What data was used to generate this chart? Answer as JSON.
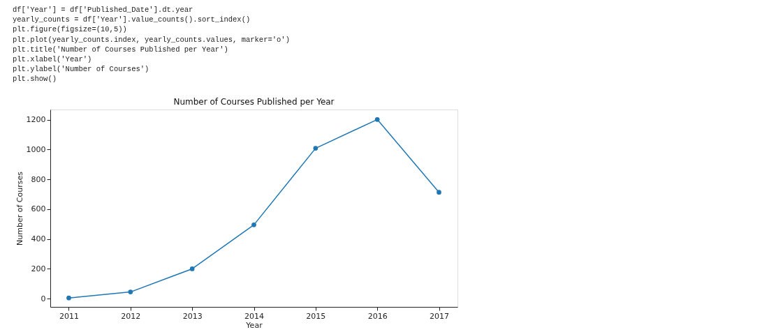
{
  "chart_data": {
    "type": "line",
    "title": "Number of Courses Published per Year",
    "xlabel": "Year",
    "ylabel": "Number of Courses",
    "x": [
      2011,
      2012,
      2013,
      2014,
      2015,
      2016,
      2017
    ],
    "series": [
      {
        "color": "#1f77b4",
        "values": [
          5,
          45,
          200,
          495,
          1008,
          1201,
          713
        ]
      }
    ],
    "marker": "circle",
    "line_style": "solid",
    "xlim": [
      2010.7,
      2017.3
    ],
    "xticks": [
      2011,
      2012,
      2013,
      2014,
      2015,
      2016,
      2017
    ],
    "ylim": [
      -55,
      1268
    ],
    "yticks": [
      0,
      200,
      400,
      600,
      800,
      1000,
      1200
    ],
    "grid": false,
    "annotations": [
      "df['Year'] = df['Published_Date'].dt.year",
      "yearly_counts = df['Year'].value_counts().sort_index()",
      "plt.figure(figsize=(10,5))",
      "plt.plot(yearly_counts.index, yearly_counts.values, marker='o')",
      "plt.title('Number of Courses Published per Year')",
      "plt.xlabel('Year')",
      "plt.ylabel('Number of Courses')",
      "plt.show()"
    ]
  }
}
